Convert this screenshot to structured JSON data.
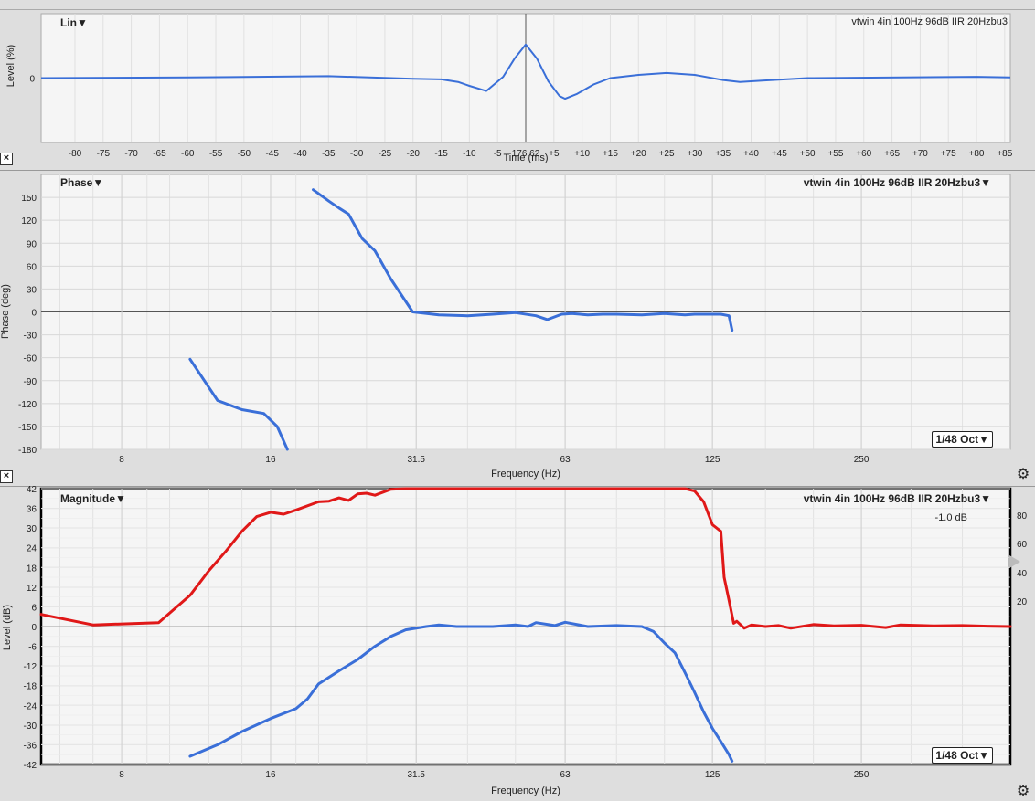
{
  "ir_panel": {
    "title": "Lin▼",
    "trace_label": "vtwin 4in 100Hz 96dB IIR 20Hzbu3",
    "ylabel": "Level (%)",
    "xlabel": "Time (ms)",
    "y_tick": "0",
    "x_ticks": [
      "-80",
      "-75",
      "-70",
      "-65",
      "-60",
      "-55",
      "-50",
      "-45",
      "-40",
      "-35",
      "-30",
      "-25",
      "-20",
      "-15",
      "-10",
      "-5",
      "176.62",
      "+5",
      "+10",
      "+15",
      "+20",
      "+25",
      "+30",
      "+35",
      "+40",
      "+45",
      "+50",
      "+55",
      "+60",
      "+65",
      "+70",
      "+75",
      "+80",
      "+85"
    ]
  },
  "phase_panel": {
    "title": "Phase▼",
    "trace_label": "vtwin 4in 100Hz 96dB IIR 20Hzbu3▼",
    "ylabel": "Phase (deg)",
    "xlabel": "Frequency (Hz)",
    "smoothing": "1/48 Oct▼"
  },
  "mag_panel": {
    "title": "Magnitude▼",
    "trace_label": "vtwin 4in 100Hz 96dB IIR 20Hzbu3▼",
    "offset": "-1.0 dB",
    "ylabel": "Level (dB)",
    "xlabel": "Frequency (Hz)",
    "smoothing": "1/48 Oct▼",
    "right_ticks": [
      "80",
      "60",
      "40",
      "20"
    ]
  },
  "colors": {
    "blue": "#3a6fd8",
    "red": "#e01818"
  },
  "chart_data": [
    {
      "type": "line",
      "title": "Lin",
      "xlabel": "Time (ms)",
      "ylabel": "Level (%)",
      "xlim": [
        -86,
        86
      ],
      "ylim": [
        -100,
        100
      ],
      "series": [
        {
          "name": "vtwin 4in 100Hz 96dB IIR 20Hzbu3",
          "color": "#3a6fd8",
          "x": [
            -86,
            -60,
            -35,
            -20,
            -15,
            -12,
            -10,
            -7,
            -4,
            -2,
            0,
            2,
            4,
            6,
            7,
            9,
            12,
            15,
            20,
            25,
            30,
            35,
            38,
            42,
            50,
            80,
            86
          ],
          "y": [
            0,
            1,
            3,
            -1,
            -2,
            -6,
            -12,
            -20,
            2,
            30,
            52,
            30,
            -5,
            -28,
            -32,
            -25,
            -10,
            0,
            5,
            8,
            5,
            -3,
            -6,
            -4,
            0,
            2,
            1
          ]
        }
      ]
    },
    {
      "type": "line",
      "title": "Phase",
      "xlabel": "Frequency (Hz)",
      "ylabel": "Phase (deg)",
      "xscale": "log",
      "xlim": [
        5.5,
        500
      ],
      "ylim": [
        -180,
        180
      ],
      "x_ticks": [
        "8",
        "16",
        "31.5",
        "63",
        "125",
        "250"
      ],
      "y_ticks": [
        "150",
        "120",
        "90",
        "60",
        "30",
        "0",
        "-30",
        "-60",
        "-90",
        "-120",
        "-150",
        "-180"
      ],
      "series": [
        {
          "name": "vtwin 4in 100Hz 96dB IIR 20Hzbu3 (segment 1)",
          "color": "#3a6fd8",
          "x": [
            11,
            12.5,
            14,
            15.5,
            16.5,
            17.3
          ],
          "y": [
            -62,
            -116,
            -128,
            -133,
            -150,
            -180
          ]
        },
        {
          "name": "vtwin 4in 100Hz 96dB IIR 20Hzbu3 (segment 2)",
          "color": "#3a6fd8",
          "x": [
            19.5,
            21,
            22,
            23,
            24.5,
            26,
            28,
            31,
            35,
            40,
            45,
            50,
            55,
            58,
            62,
            65,
            70,
            75,
            80,
            90,
            100,
            110,
            115,
            125,
            130,
            135,
            137
          ],
          "y": [
            160,
            145,
            136,
            128,
            96,
            80,
            43,
            0,
            -4,
            -5,
            -3,
            -1,
            -5,
            -10,
            -3,
            -2,
            -4,
            -3,
            -3,
            -4,
            -2,
            -4,
            -3,
            -3,
            -3,
            -5,
            -24
          ]
        }
      ]
    },
    {
      "type": "line",
      "title": "Magnitude",
      "xlabel": "Frequency (Hz)",
      "ylabel": "Level (dB)",
      "xscale": "log",
      "xlim": [
        5.5,
        500
      ],
      "ylim": [
        -42,
        42
      ],
      "x_ticks": [
        "8",
        "16",
        "31.5",
        "63",
        "125",
        "250"
      ],
      "y_ticks": [
        "42",
        "36",
        "30",
        "24",
        "18",
        "12",
        "6",
        "0",
        "-6",
        "-12",
        "-18",
        "-24",
        "-30",
        "-36",
        "-42"
      ],
      "series": [
        {
          "name": "vtwin 4in 100Hz 96dB IIR 20Hzbu3",
          "color": "#e01818",
          "x": [
            5.5,
            7,
            9.5,
            11,
            12,
            13,
            14,
            15,
            16,
            17,
            18,
            20,
            21,
            22,
            23,
            24,
            25,
            26,
            28,
            30,
            35,
            40,
            50,
            60,
            70,
            80,
            90,
            100,
            110,
            115,
            120,
            125,
            130,
            132,
            135,
            138,
            140,
            145,
            150,
            160,
            170,
            180,
            200,
            220,
            250,
            280,
            300,
            350,
            400,
            450,
            500
          ],
          "y": [
            3.7,
            0.5,
            1.2,
            9.5,
            17,
            23,
            29,
            33.5,
            34.8,
            34.2,
            35.5,
            38,
            38.2,
            39.2,
            38.4,
            40.4,
            40.6,
            40,
            41.8,
            42,
            42,
            42,
            42,
            42,
            42,
            42,
            42,
            42,
            42,
            41.3,
            38,
            31,
            29,
            15,
            8,
            1,
            1.6,
            -0.5,
            0.5,
            0,
            0.3,
            -0.5,
            0.6,
            0.2,
            0.4,
            -0.3,
            0.5,
            0.2,
            0.3,
            0.1,
            0
          ]
        },
        {
          "name": "vtwin 4in 100Hz 96dB IIR 20Hzbu3 (2)",
          "color": "#3a6fd8",
          "x": [
            11,
            12.5,
            14,
            16,
            18,
            19,
            20,
            22,
            24,
            26,
            28,
            30,
            33,
            35,
            38,
            40,
            45,
            50,
            53,
            55,
            60,
            63,
            70,
            80,
            90,
            95,
            100,
            105,
            110,
            115,
            120,
            125,
            130,
            135,
            137
          ],
          "y": [
            -39.5,
            -36,
            -32,
            -28,
            -25,
            -22,
            -17.5,
            -13.5,
            -10,
            -6,
            -3,
            -1,
            0,
            0.5,
            0,
            0,
            0,
            0.5,
            0,
            1.2,
            0.3,
            1.3,
            0,
            0.3,
            0,
            -1.5,
            -5,
            -8,
            -14,
            -20,
            -26,
            -31,
            -35,
            -39,
            -41
          ]
        }
      ]
    }
  ]
}
